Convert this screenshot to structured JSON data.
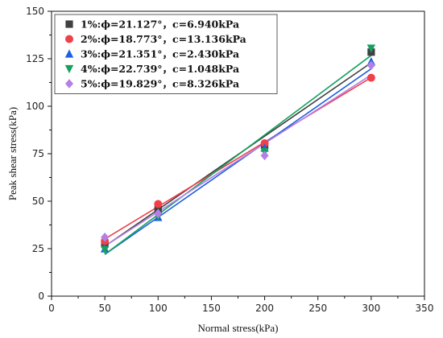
{
  "chart_data": {
    "type": "scatter",
    "title": "",
    "xlabel": "Normal stress(kPa)",
    "ylabel": "Peak shear stress(kPa)",
    "xlim": [
      0,
      350
    ],
    "ylim": [
      0,
      150
    ],
    "xticks": [
      0,
      50,
      100,
      150,
      200,
      250,
      300,
      350
    ],
    "yticks": [
      0,
      25,
      50,
      75,
      100,
      125,
      150
    ],
    "grid": false,
    "legend_position": "top-left",
    "x": [
      50,
      100,
      200,
      300
    ],
    "series": [
      {
        "name": "1%:ϕ=21.127°，c=6.940kPa",
        "marker": "square",
        "color": "#404040",
        "values": [
          27.5,
          45.5,
          79.5,
          128.5
        ],
        "fit": {
          "slope": 0.3865,
          "intercept": 6.94
        }
      },
      {
        "name": "2%:ϕ=18.773°，c=13.136kPa",
        "marker": "circle",
        "color": "#f0404a",
        "values": [
          29.0,
          48.5,
          80.5,
          115.0
        ],
        "fit": {
          "slope": 0.3399,
          "intercept": 13.136
        }
      },
      {
        "name": "3%:ϕ=21.351°，c=2.430kPa",
        "marker": "triangle-up",
        "color": "#1f5fe0",
        "values": [
          25.0,
          41.5,
          78.0,
          123.5
        ],
        "fit": {
          "slope": 0.391,
          "intercept": 2.43
        }
      },
      {
        "name": "4%:ϕ=22.739°，c=1.048kPa",
        "marker": "triangle-down",
        "color": "#16a060",
        "values": [
          24.5,
          42.0,
          76.0,
          130.5
        ],
        "fit": {
          "slope": 0.4191,
          "intercept": 1.048
        }
      },
      {
        "name": "5%:ϕ=19.829°，c=8.326kPa",
        "marker": "diamond",
        "color": "#b57fe6",
        "values": [
          31.0,
          43.5,
          74.0,
          121.5
        ],
        "fit": {
          "slope": 0.3606,
          "intercept": 8.326
        }
      }
    ]
  }
}
